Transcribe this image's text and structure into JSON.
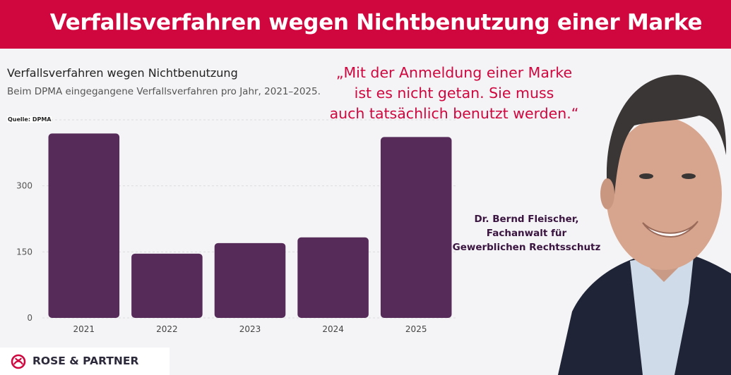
{
  "header": {
    "title": "Verfallsverfahren wegen Nichtbenutzung einer Marke"
  },
  "quote": {
    "lines": [
      "„Mit der Anmeldung einer Marke",
      "ist es nicht getan. Sie muss",
      "auch tatsächlich benutzt werden.“"
    ]
  },
  "person": {
    "lines": [
      "Dr. Bernd Fleischer,",
      "Fachanwalt für",
      "Gewerblichen Rechtsschutz"
    ]
  },
  "logo": {
    "text": "ROSE & PARTNER",
    "icon": "rose-logo-icon"
  },
  "colors": {
    "brand": "#d0063f",
    "bar": "#562b59",
    "name": "#3a1540"
  },
  "chart_data": {
    "type": "bar",
    "title": "Verfallsverfahren wegen Nichtbenutzung",
    "subtitle": "Beim DPMA eingegangene Verfallsverfahren pro Jahr, 2021–2025.",
    "source": "Quelle: DPMA",
    "categories": [
      "2021",
      "2022",
      "2023",
      "2024",
      "2025"
    ],
    "values": [
      419,
      146,
      170,
      183,
      411
    ],
    "ylim": [
      0,
      450
    ],
    "yticks": [
      0,
      150,
      300,
      450
    ],
    "grid": true
  }
}
